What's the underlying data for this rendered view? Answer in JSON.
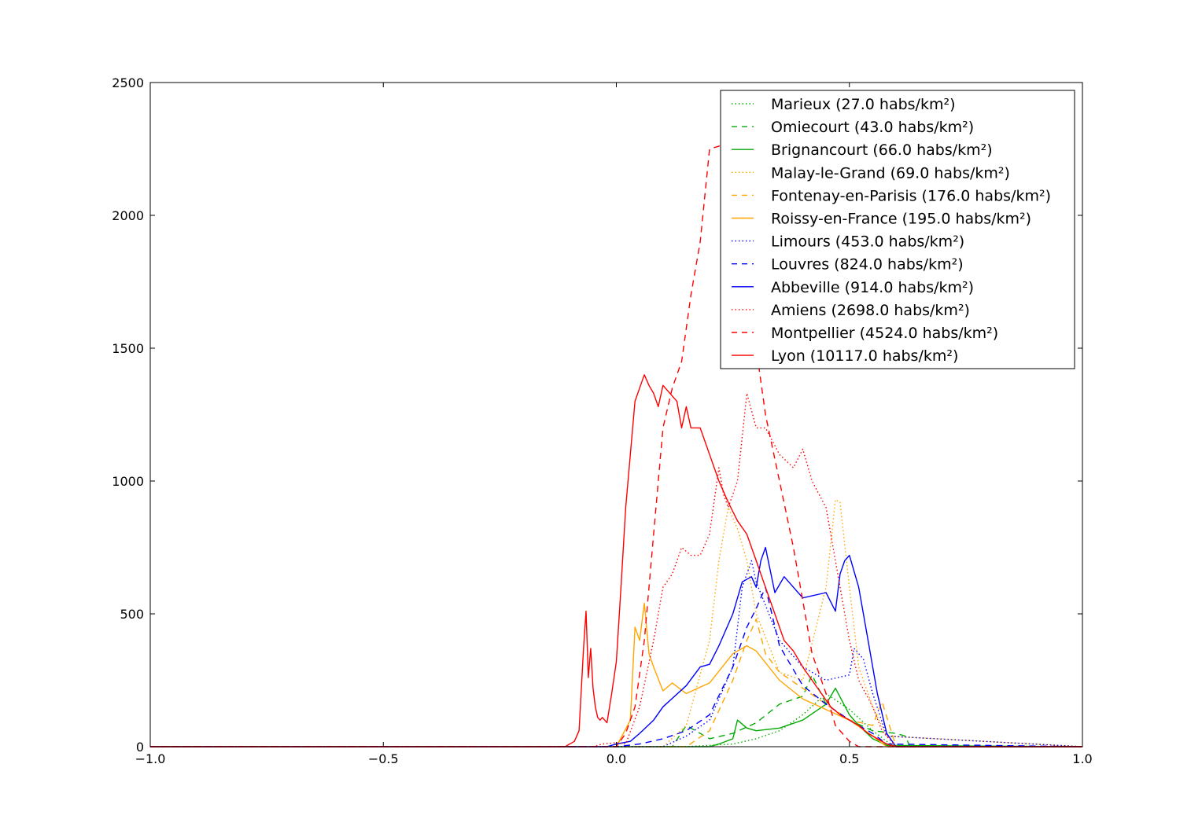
{
  "chart_data": {
    "type": "line",
    "title": "",
    "xlabel": "",
    "ylabel": "",
    "xlim": [
      -1.0,
      1.0
    ],
    "ylim": [
      0,
      2500
    ],
    "xticks": [
      -1.0,
      -0.5,
      0.0,
      0.5,
      1.0
    ],
    "xtick_labels": [
      "−1.0",
      "−0.5",
      "0.0",
      "0.5",
      "1.0"
    ],
    "yticks": [
      0,
      500,
      1000,
      1500,
      2000,
      2500
    ],
    "ytick_labels": [
      "0",
      "500",
      "1000",
      "1500",
      "2000",
      "2500"
    ],
    "grid": false,
    "legend_position": "top-right",
    "series": [
      {
        "name": "Marieux (27.0 habs/km²)",
        "color": "#00aa00",
        "style": "dotted",
        "x": [
          -1.0,
          0.15,
          0.2,
          0.25,
          0.3,
          0.35,
          0.4,
          0.45,
          0.5,
          0.55,
          0.58,
          0.6,
          1.0
        ],
        "y": [
          0,
          0,
          5,
          10,
          30,
          60,
          120,
          200,
          140,
          60,
          20,
          0,
          0
        ]
      },
      {
        "name": "Omiecourt (43.0 habs/km²)",
        "color": "#00aa00",
        "style": "dashed",
        "x": [
          -1.0,
          0.12,
          0.15,
          0.2,
          0.25,
          0.3,
          0.35,
          0.4,
          0.42,
          0.45,
          0.5,
          0.55,
          0.6,
          0.62,
          0.63,
          1.0
        ],
        "y": [
          0,
          0,
          80,
          30,
          50,
          90,
          160,
          190,
          270,
          160,
          100,
          60,
          50,
          40,
          0,
          0
        ]
      },
      {
        "name": "Brignancourt (66.0 habs/km²)",
        "color": "#00aa00",
        "style": "solid",
        "x": [
          -1.0,
          0.2,
          0.22,
          0.25,
          0.26,
          0.28,
          0.3,
          0.35,
          0.4,
          0.45,
          0.47,
          0.5,
          0.52,
          0.55,
          0.58,
          1.0
        ],
        "y": [
          0,
          0,
          10,
          30,
          100,
          70,
          60,
          70,
          100,
          160,
          220,
          120,
          80,
          30,
          5,
          0
        ]
      },
      {
        "name": "Malay-le-Grand (69.0 habs/km²)",
        "color": "#ffa500",
        "style": "dotted",
        "x": [
          -1.0,
          0.1,
          0.15,
          0.2,
          0.22,
          0.24,
          0.26,
          0.28,
          0.3,
          0.35,
          0.4,
          0.45,
          0.47,
          0.48,
          0.5,
          0.52,
          0.55,
          0.58,
          1.0
        ],
        "y": [
          0,
          0,
          80,
          400,
          700,
          900,
          820,
          700,
          500,
          280,
          250,
          600,
          930,
          920,
          600,
          300,
          150,
          40,
          0
        ]
      },
      {
        "name": "Fontenay-en-Parisis (176.0 habs/km²)",
        "color": "#ffa500",
        "style": "dashed",
        "x": [
          -1.0,
          0.15,
          0.2,
          0.25,
          0.28,
          0.3,
          0.32,
          0.35,
          0.4,
          0.45,
          0.5,
          0.55,
          0.57,
          0.6,
          1.0
        ],
        "y": [
          0,
          0,
          60,
          250,
          400,
          480,
          350,
          280,
          220,
          160,
          100,
          80,
          170,
          0,
          0
        ]
      },
      {
        "name": "Roissy-en-France (195.0 habs/km²)",
        "color": "#ffa500",
        "style": "solid",
        "x": [
          -1.0,
          0.0,
          0.03,
          0.04,
          0.05,
          0.06,
          0.07,
          0.08,
          0.1,
          0.12,
          0.15,
          0.2,
          0.25,
          0.28,
          0.3,
          0.35,
          0.4,
          0.45,
          0.5,
          0.55,
          0.58,
          1.0
        ],
        "y": [
          0,
          0,
          100,
          450,
          400,
          540,
          350,
          300,
          210,
          240,
          200,
          240,
          350,
          380,
          360,
          250,
          180,
          140,
          100,
          40,
          0,
          0
        ]
      },
      {
        "name": "Limours (453.0 habs/km²)",
        "color": "#0000ff",
        "style": "dotted",
        "x": [
          -1.0,
          0.1,
          0.15,
          0.2,
          0.25,
          0.27,
          0.29,
          0.3,
          0.35,
          0.4,
          0.45,
          0.5,
          0.51,
          0.53,
          0.55,
          0.58,
          1.0
        ],
        "y": [
          0,
          0,
          40,
          100,
          300,
          600,
          700,
          620,
          400,
          300,
          250,
          270,
          370,
          330,
          200,
          40,
          0
        ]
      },
      {
        "name": "Louvres (824.0 habs/km²)",
        "color": "#0000ff",
        "style": "dashed",
        "x": [
          -1.0,
          0.0,
          0.05,
          0.1,
          0.15,
          0.2,
          0.25,
          0.28,
          0.3,
          0.32,
          0.35,
          0.4,
          0.45,
          0.5,
          0.55,
          0.58,
          1.0
        ],
        "y": [
          0,
          0,
          10,
          30,
          60,
          120,
          300,
          450,
          520,
          600,
          380,
          230,
          160,
          100,
          50,
          10,
          0
        ]
      },
      {
        "name": "Abbeville (914.0 habs/km²)",
        "color": "#0000ff",
        "style": "solid",
        "x": [
          -1.0,
          -0.02,
          0.0,
          0.03,
          0.05,
          0.08,
          0.1,
          0.15,
          0.18,
          0.2,
          0.22,
          0.25,
          0.27,
          0.29,
          0.3,
          0.31,
          0.32,
          0.34,
          0.36,
          0.4,
          0.45,
          0.47,
          0.48,
          0.49,
          0.5,
          0.52,
          0.54,
          0.56,
          0.58,
          0.6,
          1.0
        ],
        "y": [
          0,
          0,
          10,
          20,
          50,
          100,
          150,
          230,
          300,
          310,
          380,
          500,
          620,
          640,
          600,
          700,
          750,
          580,
          640,
          560,
          580,
          510,
          650,
          700,
          720,
          600,
          400,
          200,
          50,
          0,
          0
        ]
      },
      {
        "name": "Amiens (2698.0 habs/km²)",
        "color": "#ff0000",
        "style": "dotted",
        "x": [
          -1.0,
          -0.05,
          -0.03,
          0.0,
          0.02,
          0.05,
          0.08,
          0.1,
          0.12,
          0.14,
          0.16,
          0.18,
          0.2,
          0.22,
          0.23,
          0.24,
          0.26,
          0.28,
          0.3,
          0.32,
          0.35,
          0.38,
          0.4,
          0.42,
          0.45,
          0.47,
          0.5,
          0.52,
          0.55,
          0.57,
          0.6,
          1.0
        ],
        "y": [
          0,
          0,
          10,
          15,
          10,
          150,
          400,
          600,
          650,
          750,
          720,
          720,
          800,
          1050,
          950,
          900,
          1000,
          1330,
          1200,
          1200,
          1100,
          1050,
          1120,
          1000,
          900,
          700,
          400,
          250,
          150,
          60,
          0,
          0
        ]
      },
      {
        "name": "Montpellier (4524.0 habs/km²)",
        "color": "#ff0000",
        "style": "dashed",
        "x": [
          -1.0,
          0.0,
          0.02,
          0.04,
          0.06,
          0.08,
          0.1,
          0.12,
          0.14,
          0.16,
          0.18,
          0.2,
          0.22,
          0.24,
          0.26,
          0.28,
          0.3,
          0.32,
          0.35,
          0.38,
          0.4,
          0.42,
          0.45,
          0.47,
          0.5,
          0.52,
          0.55,
          1.0
        ],
        "y": [
          0,
          0,
          50,
          150,
          400,
          800,
          1200,
          1350,
          1450,
          1700,
          1900,
          2250,
          2260,
          2300,
          2200,
          2100,
          1500,
          1250,
          1000,
          750,
          550,
          350,
          200,
          80,
          20,
          0,
          0,
          0
        ]
      },
      {
        "name": "Lyon (10117.0 habs/km²)",
        "color": "#ff0000",
        "style": "solid",
        "x": [
          -1.0,
          -0.11,
          -0.09,
          -0.08,
          -0.07,
          -0.065,
          -0.06,
          -0.055,
          -0.05,
          -0.045,
          -0.04,
          -0.035,
          -0.03,
          -0.02,
          -0.01,
          0.0,
          0.01,
          0.02,
          0.03,
          0.04,
          0.05,
          0.06,
          0.07,
          0.08,
          0.09,
          0.1,
          0.11,
          0.12,
          0.13,
          0.14,
          0.15,
          0.16,
          0.18,
          0.2,
          0.22,
          0.24,
          0.26,
          0.28,
          0.3,
          0.32,
          0.34,
          0.36,
          0.38,
          0.4,
          0.42,
          0.44,
          0.46,
          0.48,
          0.5,
          0.52,
          0.54,
          0.56,
          0.58,
          0.6,
          1.0
        ],
        "y": [
          0,
          0,
          20,
          60,
          380,
          510,
          260,
          370,
          220,
          150,
          110,
          100,
          110,
          90,
          200,
          320,
          600,
          900,
          1100,
          1300,
          1350,
          1400,
          1360,
          1330,
          1280,
          1360,
          1340,
          1320,
          1300,
          1200,
          1280,
          1200,
          1200,
          1100,
          1000,
          920,
          850,
          800,
          700,
          600,
          500,
          400,
          360,
          300,
          250,
          200,
          150,
          120,
          100,
          80,
          50,
          30,
          10,
          0,
          0
        ]
      }
    ]
  }
}
